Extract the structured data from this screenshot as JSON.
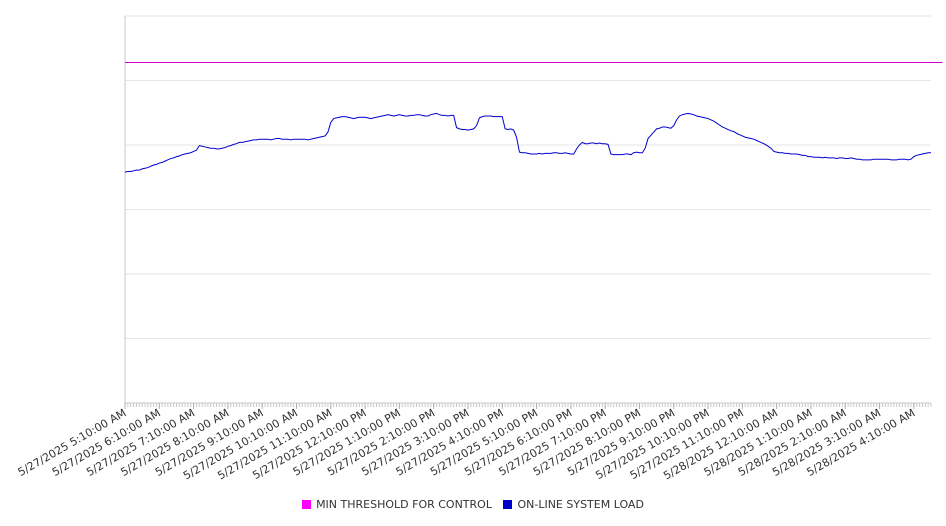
{
  "chart_data": {
    "type": "line",
    "title": "",
    "xlabel": "",
    "ylabel": "",
    "grid": true,
    "legend_position": "bottom",
    "ylim": [
      0,
      6
    ],
    "x_start": "5/27/2025 5:10:00 AM",
    "x_interval_minutes": 5,
    "x_tick_labels": [
      "5/27/2025 5:10:00 AM",
      "5/27/2025 6:10:00 AM",
      "5/27/2025 7:10:00 AM",
      "5/27/2025 8:10:00 AM",
      "5/27/2025 9:10:00 AM",
      "5/27/2025 10:10:00 AM",
      "5/27/2025 11:10:00 AM",
      "5/27/2025 12:10:00 PM",
      "5/27/2025 1:10:00 PM",
      "5/27/2025 2:10:00 PM",
      "5/27/2025 3:10:00 PM",
      "5/27/2025 4:10:00 PM",
      "5/27/2025 5:10:00 PM",
      "5/27/2025 6:10:00 PM",
      "5/27/2025 7:10:00 PM",
      "5/27/2025 8:10:00 PM",
      "5/27/2025 9:10:00 PM",
      "5/27/2025 10:10:00 PM",
      "5/27/2025 11:10:00 PM",
      "5/28/2025 12:10:00 AM",
      "5/28/2025 1:10:00 AM",
      "5/28/2025 2:10:00 AM",
      "5/28/2025 3:10:00 AM",
      "5/28/2025 4:10:00 AM"
    ],
    "series": [
      {
        "name": "MIN THRESHOLD FOR CONTROL",
        "color": "#cc00cc",
        "values": [
          5.28,
          5.28,
          5.28,
          5.28,
          5.28,
          5.28,
          5.28,
          5.28,
          5.28,
          5.28,
          5.28,
          5.28,
          5.28,
          5.28,
          5.28,
          5.28,
          5.28,
          5.28,
          5.28,
          5.28,
          5.28,
          5.28,
          5.28,
          5.28,
          5.28,
          5.28,
          5.28,
          5.28,
          5.28,
          5.28,
          5.28,
          5.28,
          5.28,
          5.28,
          5.28,
          5.28,
          5.28,
          5.28,
          5.28,
          5.28,
          5.28,
          5.28,
          5.28,
          5.28,
          5.28,
          5.28,
          5.28,
          5.28,
          5.28,
          5.28,
          5.28,
          5.28,
          5.28,
          5.28,
          5.28,
          5.28,
          5.28,
          5.28,
          5.28,
          5.28,
          5.28,
          5.28,
          5.28,
          5.28,
          5.28,
          5.28,
          5.28,
          5.28,
          5.28,
          5.28,
          5.28,
          5.28,
          5.28,
          5.28,
          5.28,
          5.28,
          5.28,
          5.28,
          5.28,
          5.28,
          5.28,
          5.28,
          5.28,
          5.28,
          5.28,
          5.28,
          5.28,
          5.28,
          5.28,
          5.28,
          5.28,
          5.28,
          5.28,
          5.28,
          5.28,
          5.28,
          5.28,
          5.28,
          5.28,
          5.28,
          5.28,
          5.28,
          5.28,
          5.28,
          5.28,
          5.28,
          5.28,
          5.28,
          5.28,
          5.28,
          5.28,
          5.28,
          5.28,
          5.28,
          5.28,
          5.28,
          5.28,
          5.28,
          5.28,
          5.28,
          5.28,
          5.28,
          5.28,
          5.28,
          5.28,
          5.28,
          5.28,
          5.28,
          5.28,
          5.28,
          5.28,
          5.28,
          5.28,
          5.28,
          5.28,
          5.28,
          5.28,
          5.28,
          5.28,
          5.28,
          5.28,
          5.28,
          5.28,
          5.28,
          5.28,
          5.28,
          5.28,
          5.28,
          5.28,
          5.28,
          5.28,
          5.28,
          5.28,
          5.28,
          5.28,
          5.28,
          5.28,
          5.28,
          5.28,
          5.28,
          5.28,
          5.28,
          5.28,
          5.28,
          5.28,
          5.28,
          5.28,
          5.28,
          5.28,
          5.28,
          5.28,
          5.28,
          5.28,
          5.28,
          5.28,
          5.28,
          5.28,
          5.28,
          5.28,
          5.28,
          5.28,
          5.28,
          5.28,
          5.28,
          5.28,
          5.28,
          5.28,
          5.28,
          5.28,
          5.28,
          5.28,
          5.28,
          5.28,
          5.28,
          5.28,
          5.28,
          5.28,
          5.28,
          5.28,
          5.28,
          5.28,
          5.28,
          5.28,
          5.28,
          5.28,
          5.28,
          5.28,
          5.28,
          5.28,
          5.28,
          5.28,
          5.28,
          5.28,
          5.28,
          5.28,
          5.28,
          5.28,
          5.28,
          5.28,
          5.28,
          5.28,
          5.28,
          5.28,
          5.28,
          5.28,
          5.28,
          5.28,
          5.28,
          5.28,
          5.28,
          5.28,
          5.28,
          5.28,
          5.28,
          5.28,
          5.28,
          5.28,
          5.28,
          5.28,
          5.28,
          5.28,
          5.28,
          5.28,
          5.28,
          5.28,
          5.28,
          5.28,
          5.28,
          5.28,
          5.28,
          5.28,
          5.28,
          5.28,
          5.28,
          5.28,
          5.28,
          5.28,
          5.28,
          5.28,
          5.28,
          5.28,
          5.28,
          5.28,
          5.28,
          5.28,
          5.28,
          5.28,
          5.28,
          5.28,
          5.28,
          5.28,
          5.28,
          5.28,
          5.28,
          5.28,
          5.28,
          5.28,
          5.28,
          5.28,
          5.28,
          5.28,
          5.28,
          5.28,
          5.28,
          5.28,
          5.28,
          5.28
        ]
      },
      {
        "name": "ON-LINE SYSTEM LOAD",
        "color": "#0000cc",
        "values": [
          3.58,
          3.59,
          3.59,
          3.6,
          3.61,
          3.61,
          3.63,
          3.64,
          3.65,
          3.67,
          3.69,
          3.7,
          3.72,
          3.73,
          3.75,
          3.77,
          3.79,
          3.8,
          3.82,
          3.83,
          3.85,
          3.86,
          3.87,
          3.88,
          3.9,
          3.92,
          3.99,
          3.98,
          3.97,
          3.96,
          3.95,
          3.95,
          3.94,
          3.94,
          3.95,
          3.96,
          3.98,
          3.99,
          4.01,
          4.02,
          4.04,
          4.04,
          4.05,
          4.06,
          4.07,
          4.08,
          4.08,
          4.09,
          4.09,
          4.09,
          4.09,
          4.08,
          4.09,
          4.1,
          4.1,
          4.09,
          4.09,
          4.09,
          4.08,
          4.09,
          4.09,
          4.09,
          4.09,
          4.09,
          4.08,
          4.09,
          4.1,
          4.11,
          4.12,
          4.13,
          4.14,
          4.2,
          4.35,
          4.41,
          4.42,
          4.43,
          4.44,
          4.44,
          4.43,
          4.42,
          4.41,
          4.42,
          4.43,
          4.43,
          4.43,
          4.42,
          4.41,
          4.42,
          4.43,
          4.44,
          4.45,
          4.46,
          4.47,
          4.46,
          4.45,
          4.46,
          4.47,
          4.46,
          4.45,
          4.45,
          4.46,
          4.46,
          4.47,
          4.47,
          4.46,
          4.45,
          4.45,
          4.47,
          4.48,
          4.49,
          4.47,
          4.46,
          4.46,
          4.45,
          4.46,
          4.46,
          4.27,
          4.25,
          4.24,
          4.24,
          4.23,
          4.24,
          4.25,
          4.3,
          4.42,
          4.44,
          4.45,
          4.45,
          4.45,
          4.44,
          4.44,
          4.44,
          4.44,
          4.25,
          4.24,
          4.25,
          4.23,
          4.12,
          3.89,
          3.88,
          3.88,
          3.87,
          3.86,
          3.86,
          3.86,
          3.87,
          3.86,
          3.87,
          3.87,
          3.87,
          3.88,
          3.88,
          3.87,
          3.87,
          3.88,
          3.87,
          3.86,
          3.86,
          3.94,
          4.0,
          4.04,
          4.02,
          4.02,
          4.03,
          4.03,
          4.02,
          4.03,
          4.02,
          4.02,
          4.01,
          3.86,
          3.85,
          3.85,
          3.85,
          3.85,
          3.86,
          3.86,
          3.85,
          3.88,
          3.89,
          3.88,
          3.88,
          3.95,
          4.1,
          4.15,
          4.2,
          4.25,
          4.26,
          4.28,
          4.28,
          4.27,
          4.26,
          4.3,
          4.39,
          4.45,
          4.47,
          4.48,
          4.49,
          4.48,
          4.47,
          4.45,
          4.44,
          4.43,
          4.42,
          4.41,
          4.39,
          4.37,
          4.34,
          4.31,
          4.28,
          4.26,
          4.24,
          4.22,
          4.21,
          4.18,
          4.16,
          4.14,
          4.12,
          4.11,
          4.1,
          4.09,
          4.07,
          4.05,
          4.03,
          4.01,
          3.98,
          3.95,
          3.9,
          3.89,
          3.88,
          3.88,
          3.87,
          3.87,
          3.86,
          3.86,
          3.86,
          3.85,
          3.84,
          3.84,
          3.82,
          3.82,
          3.81,
          3.81,
          3.81,
          3.8,
          3.81,
          3.8,
          3.8,
          3.8,
          3.79,
          3.8,
          3.8,
          3.79,
          3.79,
          3.8,
          3.79,
          3.78,
          3.78,
          3.77,
          3.77,
          3.77,
          3.77,
          3.78,
          3.78,
          3.78,
          3.78,
          3.78,
          3.78,
          3.77,
          3.77,
          3.77,
          3.78,
          3.78,
          3.78,
          3.77,
          3.78,
          3.82,
          3.84,
          3.85,
          3.86,
          3.87,
          3.88,
          3.88
        ]
      }
    ]
  }
}
